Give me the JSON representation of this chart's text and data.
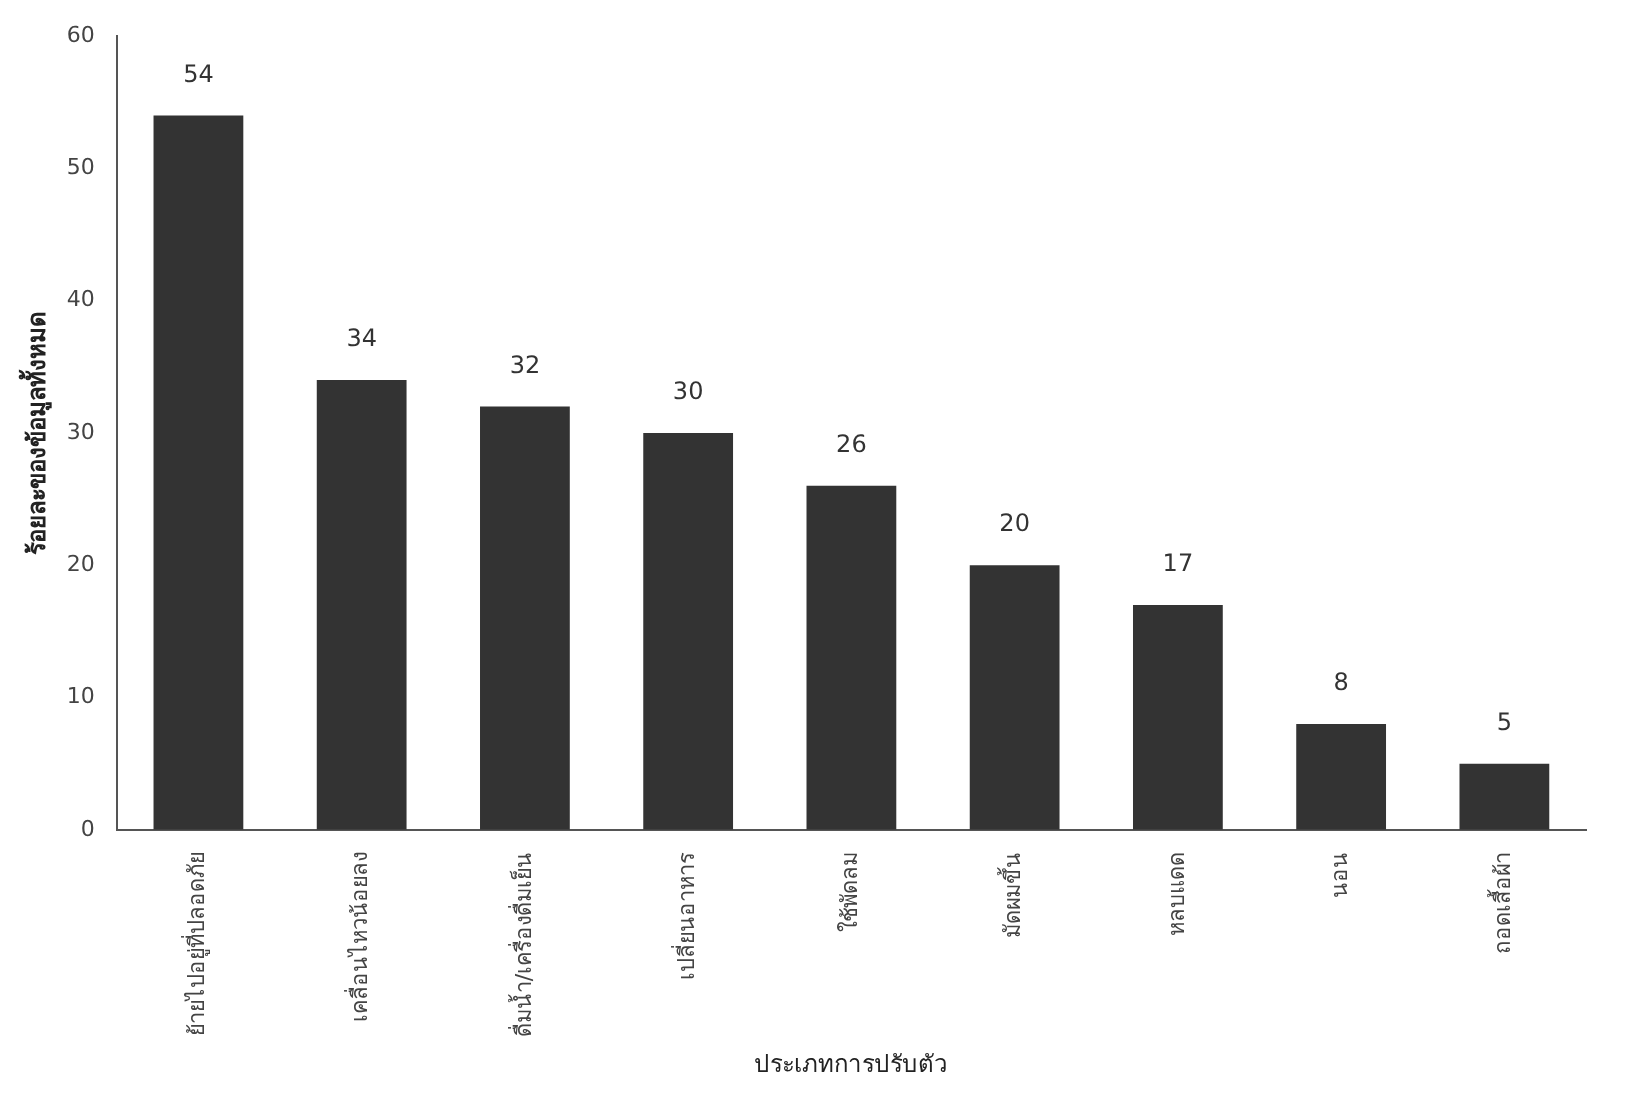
{
  "chart_data": {
    "type": "bar",
    "xlabel": "ประเภทการปรับตัว",
    "ylabel": "ร้อยละของข้อมูลทั้งหมด",
    "categories": [
      "ย้ายไปอยู่ที่ปลอดภัย",
      "เคลื่อนไหวน้อยลง",
      "ดื่มน้ำ/เครื่องดื่มเย็น",
      "เปลี่ยนอาหาร",
      "ใช้พัดลม",
      "มัดผมขึ้น",
      "หลบแดด",
      "นอน",
      "ถอดเสื้อผ้า"
    ],
    "values": [
      54,
      34,
      32,
      30,
      26,
      20,
      17,
      8,
      5
    ],
    "color": "#333333",
    "ylim": [
      0,
      60
    ],
    "yticks": [
      0,
      10,
      20,
      30,
      40,
      50,
      60
    ],
    "grid": false,
    "data_labels": true
  }
}
